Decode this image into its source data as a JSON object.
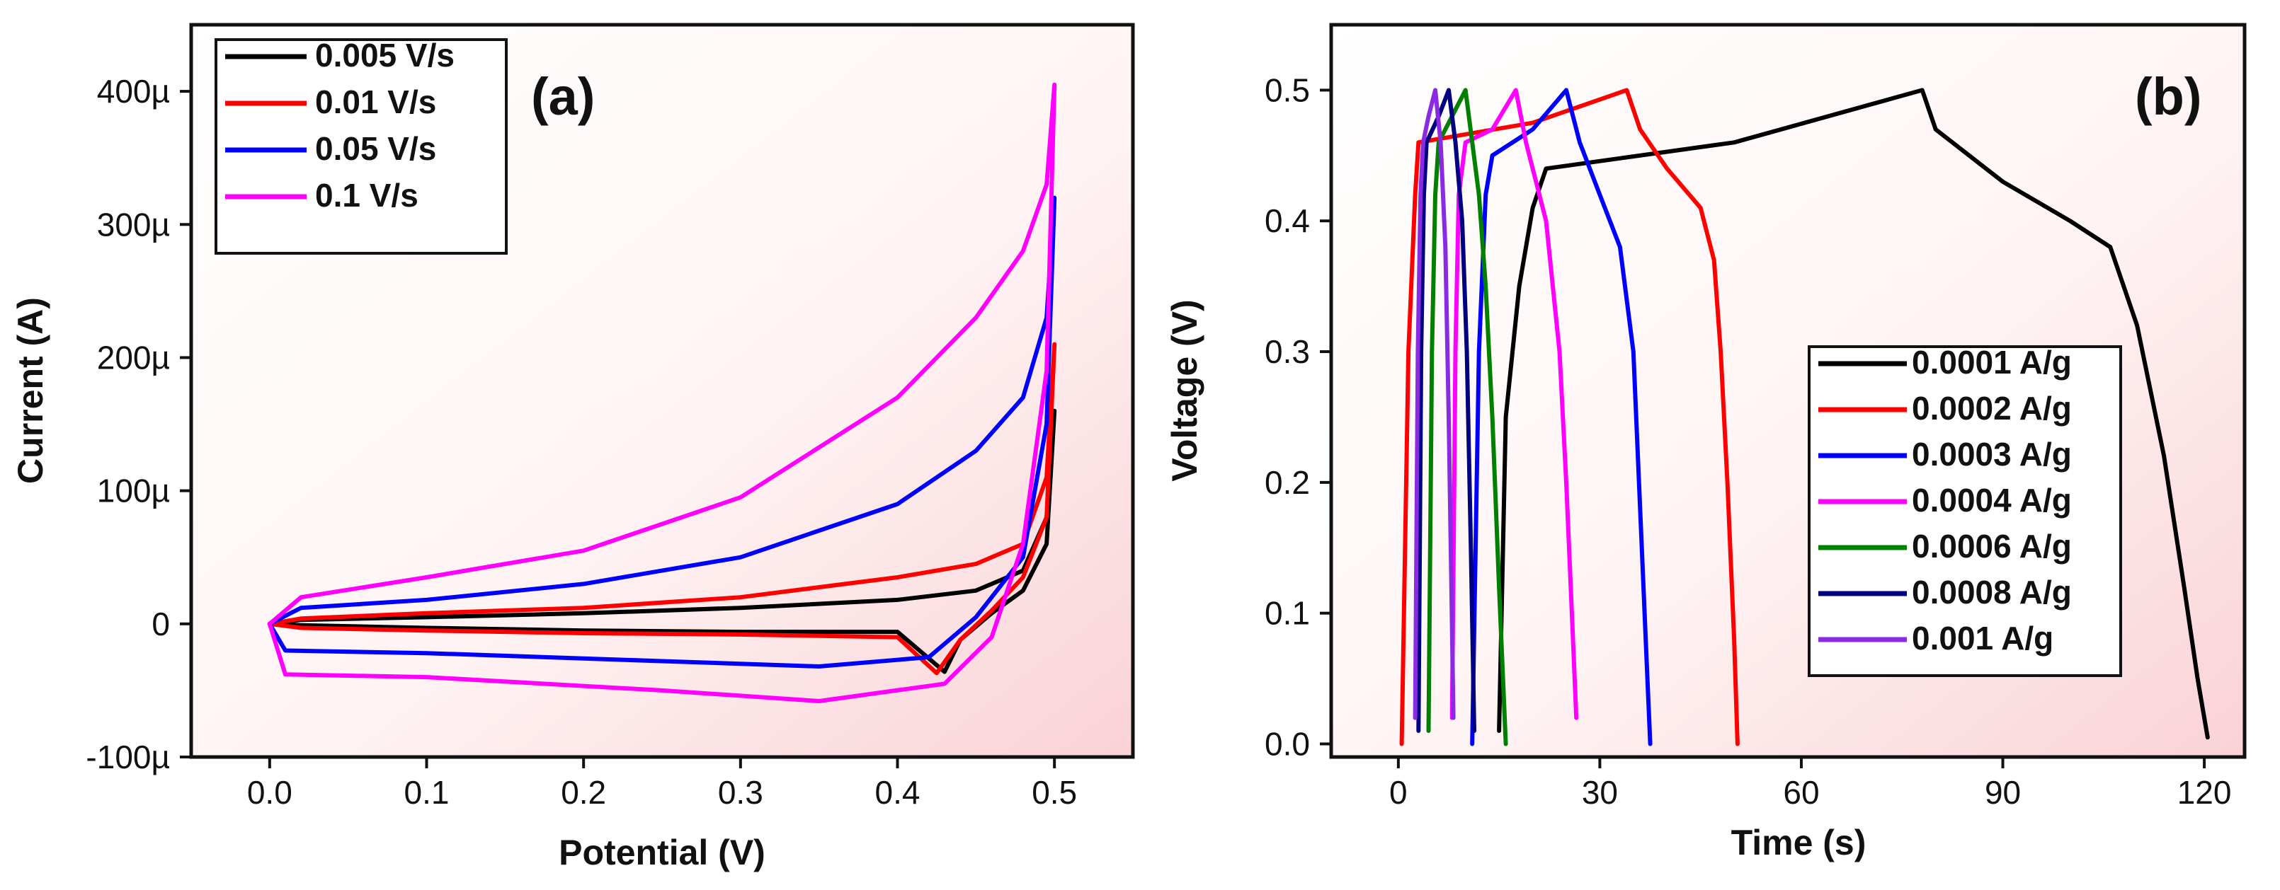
{
  "chart_data": [
    {
      "type": "line",
      "panel_label": "(a)",
      "xlabel": "Potential (V)",
      "ylabel": "Current (A)",
      "xlim": [
        -0.05,
        0.55
      ],
      "ylim": [
        -100,
        450
      ],
      "y_unit_note": "µA",
      "x_ticks": [
        {
          "v": 0.0,
          "label": "0.0"
        },
        {
          "v": 0.1,
          "label": "0.1"
        },
        {
          "v": 0.2,
          "label": "0.2"
        },
        {
          "v": 0.3,
          "label": "0.3"
        },
        {
          "v": 0.4,
          "label": "0.4"
        },
        {
          "v": 0.5,
          "label": "0.5"
        }
      ],
      "y_ticks": [
        {
          "v": -100,
          "label": "-100µ"
        },
        {
          "v": 0,
          "label": "0"
        },
        {
          "v": 100,
          "label": "100µ"
        },
        {
          "v": 200,
          "label": "200µ"
        },
        {
          "v": 300,
          "label": "300µ"
        },
        {
          "v": 400,
          "label": "400µ"
        }
      ],
      "legend_position": "top-left",
      "series": [
        {
          "name": "0.005 V/s",
          "color": "#000000",
          "x": [
            0,
            0.02,
            0.1,
            0.2,
            0.3,
            0.4,
            0.45,
            0.48,
            0.495,
            0.5,
            0.5,
            0.495,
            0.48,
            0.46,
            0.44,
            0.43,
            0.4,
            0.3,
            0.2,
            0.1,
            0.02,
            0
          ],
          "y": [
            0,
            3,
            5,
            8,
            12,
            18,
            25,
            40,
            80,
            160,
            160,
            60,
            25,
            8,
            -12,
            -36,
            -6,
            -6,
            -5,
            -3,
            -1,
            0
          ]
        },
        {
          "name": "0.01 V/s",
          "color": "#ff0000",
          "x": [
            0,
            0.02,
            0.1,
            0.2,
            0.3,
            0.4,
            0.45,
            0.48,
            0.495,
            0.5,
            0.5,
            0.495,
            0.48,
            0.46,
            0.44,
            0.425,
            0.4,
            0.3,
            0.2,
            0.1,
            0.02,
            0
          ],
          "y": [
            0,
            4,
            8,
            12,
            20,
            35,
            45,
            60,
            110,
            210,
            210,
            80,
            35,
            10,
            -12,
            -37,
            -10,
            -8,
            -7,
            -5,
            -3,
            0
          ]
        },
        {
          "name": "0.05 V/s",
          "color": "#0000ff",
          "x": [
            0,
            0.02,
            0.1,
            0.2,
            0.3,
            0.4,
            0.45,
            0.48,
            0.495,
            0.5,
            0.5,
            0.495,
            0.48,
            0.45,
            0.42,
            0.35,
            0.25,
            0.1,
            0.01,
            0
          ],
          "y": [
            0,
            12,
            18,
            30,
            50,
            90,
            130,
            170,
            230,
            320,
            320,
            150,
            50,
            5,
            -25,
            -32,
            -28,
            -22,
            -20,
            0
          ]
        },
        {
          "name": "0.1 V/s",
          "color": "#ff00ff",
          "x": [
            0,
            0.02,
            0.1,
            0.2,
            0.3,
            0.4,
            0.45,
            0.48,
            0.495,
            0.5,
            0.5,
            0.495,
            0.48,
            0.46,
            0.43,
            0.35,
            0.25,
            0.1,
            0.01,
            0
          ],
          "y": [
            0,
            20,
            35,
            55,
            95,
            170,
            230,
            280,
            330,
            405,
            405,
            190,
            60,
            -10,
            -45,
            -58,
            -50,
            -40,
            -38,
            0
          ]
        }
      ]
    },
    {
      "type": "line",
      "panel_label": "(b)",
      "xlabel": "Time (s)",
      "ylabel": "Voltage (V)",
      "xlim": [
        -10,
        126
      ],
      "ylim": [
        -0.01,
        0.55
      ],
      "x_ticks": [
        {
          "v": 0,
          "label": "0"
        },
        {
          "v": 30,
          "label": "30"
        },
        {
          "v": 60,
          "label": "60"
        },
        {
          "v": 90,
          "label": "90"
        },
        {
          "v": 120,
          "label": "120"
        }
      ],
      "y_ticks": [
        {
          "v": 0.0,
          "label": "0.0"
        },
        {
          "v": 0.1,
          "label": "0.1"
        },
        {
          "v": 0.2,
          "label": "0.2"
        },
        {
          "v": 0.3,
          "label": "0.3"
        },
        {
          "v": 0.4,
          "label": "0.4"
        },
        {
          "v": 0.5,
          "label": "0.5"
        }
      ],
      "legend_position": "bottom-right",
      "series": [
        {
          "name": "0.0001 A/g",
          "color": "#000000",
          "x": [
            15,
            16,
            18,
            20,
            22,
            50,
            78,
            80,
            90,
            100,
            106,
            110,
            114,
            117,
            119,
            120.5
          ],
          "y": [
            0.01,
            0.25,
            0.35,
            0.41,
            0.44,
            0.46,
            0.5,
            0.47,
            0.43,
            0.4,
            0.38,
            0.32,
            0.22,
            0.12,
            0.05,
            0.005
          ]
        },
        {
          "name": "0.0002 A/g",
          "color": "#ff0000",
          "x": [
            0.5,
            1.5,
            2.5,
            3,
            20,
            34,
            36,
            40,
            45,
            47,
            48,
            49,
            50,
            50.5
          ],
          "y": [
            0.0,
            0.3,
            0.42,
            0.46,
            0.475,
            0.5,
            0.47,
            0.44,
            0.41,
            0.37,
            0.3,
            0.2,
            0.08,
            0.0
          ]
        },
        {
          "name": "0.0003 A/g",
          "color": "#0000ff",
          "x": [
            11,
            12,
            13,
            14,
            20,
            25,
            27,
            30,
            33,
            35,
            36,
            37,
            37.5
          ],
          "y": [
            0.0,
            0.3,
            0.42,
            0.45,
            0.47,
            0.5,
            0.46,
            0.42,
            0.38,
            0.3,
            0.18,
            0.06,
            0.0
          ]
        },
        {
          "name": "0.0004 A/g",
          "color": "#ff00ff",
          "x": [
            8,
            8.5,
            9,
            10,
            14,
            17.5,
            19,
            22,
            24,
            25,
            26,
            26.5
          ],
          "y": [
            0.02,
            0.3,
            0.42,
            0.46,
            0.47,
            0.5,
            0.46,
            0.4,
            0.3,
            0.2,
            0.08,
            0.02
          ]
        },
        {
          "name": "0.0006 A/g",
          "color": "#008000",
          "x": [
            4.5,
            5,
            5.5,
            6,
            8,
            10,
            11,
            12,
            13,
            14,
            15,
            16
          ],
          "y": [
            0.01,
            0.3,
            0.42,
            0.46,
            0.48,
            0.5,
            0.46,
            0.42,
            0.35,
            0.25,
            0.12,
            0.0
          ]
        },
        {
          "name": "0.0008 A/g",
          "color": "#000080",
          "x": [
            3,
            3.4,
            3.8,
            4.2,
            6,
            7.5,
            8.5,
            9.5,
            10.2,
            10.8,
            11.3
          ],
          "y": [
            0.01,
            0.3,
            0.42,
            0.46,
            0.48,
            0.5,
            0.46,
            0.4,
            0.3,
            0.15,
            0.01
          ]
        },
        {
          "name": "0.001 A/g",
          "color": "#8a2be2",
          "x": [
            2.5,
            2.9,
            3.3,
            3.7,
            4.5,
            5.5,
            6.3,
            7,
            7.5,
            7.9,
            8.2
          ],
          "y": [
            0.02,
            0.3,
            0.42,
            0.46,
            0.48,
            0.5,
            0.46,
            0.38,
            0.25,
            0.12,
            0.02
          ]
        }
      ]
    }
  ]
}
